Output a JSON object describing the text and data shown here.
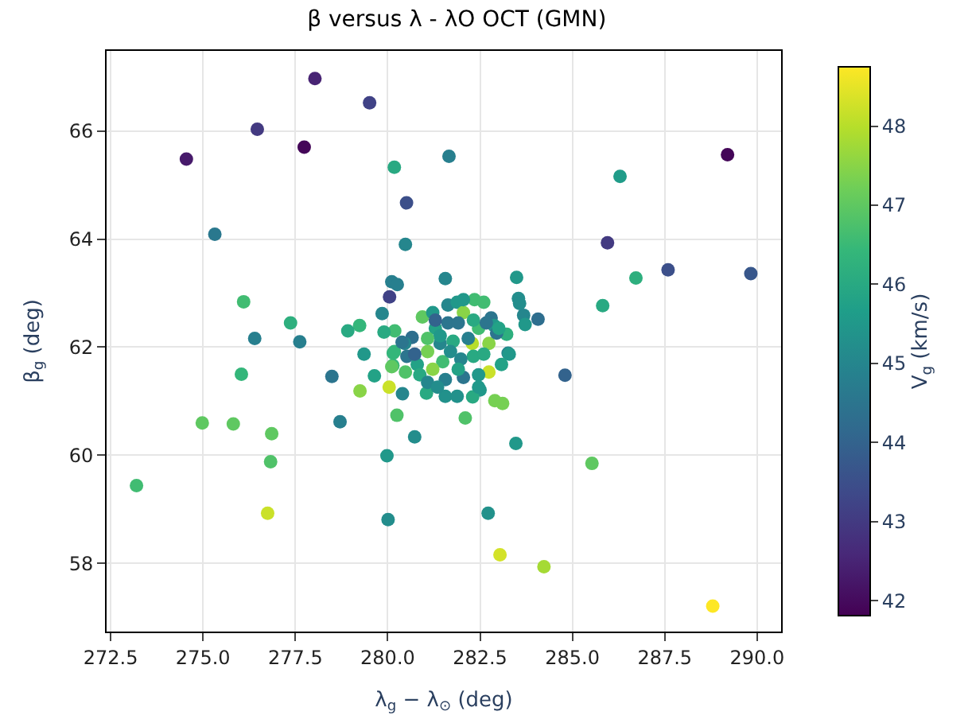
{
  "chart_data": {
    "type": "scatter",
    "title": "β versus λ - λO OCT (GMN)",
    "xlabel": "λ$_{g}$ − λ$_{⊙}$ (deg)",
    "ylabel": "β$_{g}$ (deg)",
    "clabel": "V$_{g}$ (km/s)",
    "x": [
      278.03,
      279.51,
      276.47,
      277.74,
      274.55,
      281.66,
      280.18,
      280.51,
      275.32,
      280.48,
      281.56,
      280.11,
      280.26,
      280.05,
      276.1,
      279.85,
      277.37,
      279.24,
      278.92,
      276.4,
      277.62,
      280.19,
      279.9,
      289.2,
      286.29,
      285.95,
      287.59,
      289.83,
      286.72,
      285.82,
      283.49,
      283.54,
      283.57,
      283.68,
      283.72,
      284.07,
      283.22,
      283.26,
      284.8,
      276.04,
      278.49,
      279.64,
      279.25,
      280.04,
      280.4,
      274.98,
      275.82,
      276.86,
      278.71,
      280.25,
      280.73,
      279.98,
      276.83,
      273.2,
      276.75,
      280.01,
      282.72,
      283.04,
      282.1,
      282.9,
      283.11,
      282.5,
      281.56,
      281.88,
      282.3,
      281.05,
      280.15,
      280.14,
      279.36,
      280.48,
      285.53,
      283.47,
      284.23,
      288.8,
      280.94,
      281.22,
      281.63,
      281.88,
      282.35,
      282.6,
      282.05,
      282.8,
      282.88,
      282.46,
      281.63,
      281.29,
      280.66,
      280.46,
      280.18,
      281.08,
      281.42,
      281.77,
      282.29,
      282.74,
      282.95,
      283.29,
      283.08,
      282.74,
      282.32,
      281.98,
      281.49,
      281.22,
      280.8,
      280.52,
      280.87,
      281.08,
      281.56,
      282.05,
      282.46,
      282.46,
      280.11,
      280.39,
      280.73,
      281.29,
      281.91,
      282.32,
      282.67,
      283.01,
      281.42,
      282.18,
      281.08,
      281.7,
      282.6,
      281.91,
      281.35,
      282.05
    ],
    "values": [
      66.97,
      66.52,
      66.03,
      65.7,
      65.48,
      65.53,
      65.33,
      64.67,
      64.09,
      63.9,
      63.27,
      63.21,
      63.16,
      62.93,
      62.84,
      62.62,
      62.45,
      62.4,
      62.3,
      62.16,
      62.1,
      62.3,
      62.28,
      65.56,
      65.16,
      63.93,
      63.43,
      63.36,
      63.28,
      62.77,
      63.29,
      62.9,
      62.81,
      62.59,
      62.42,
      62.52,
      62.24,
      61.89,
      61.48,
      61.5,
      61.46,
      61.47,
      61.19,
      61.26,
      61.14,
      60.6,
      60.58,
      60.4,
      60.62,
      60.74,
      60.34,
      59.99,
      59.88,
      59.44,
      58.93,
      58.81,
      58.93,
      58.16,
      60.69,
      61.01,
      60.96,
      61.21,
      61.09,
      61.09,
      61.08,
      61.15,
      61.89,
      61.66,
      61.87,
      61.54,
      59.85,
      60.22,
      57.94,
      57.21,
      62.56,
      62.64,
      62.78,
      62.83,
      62.88,
      62.83,
      62.64,
      62.54,
      62.4,
      62.35,
      62.45,
      62.35,
      62.18,
      62.07,
      61.92,
      61.92,
      62.07,
      62.11,
      62.07,
      62.07,
      62.26,
      61.87,
      61.68,
      61.54,
      61.83,
      61.78,
      61.73,
      61.59,
      61.68,
      61.83,
      61.49,
      61.35,
      61.4,
      61.44,
      61.49,
      61.26,
      61.64,
      62.09,
      61.87,
      62.5,
      62.45,
      62.5,
      62.45,
      62.35,
      62.21,
      62.16,
      62.16,
      61.92,
      61.87,
      61.59,
      61.26,
      62.88
    ],
    "cvalues": [
      42.5,
      43.2,
      43.0,
      41.9,
      42.3,
      44.8,
      46.0,
      43.5,
      44.6,
      45.0,
      45.0,
      44.8,
      44.8,
      43.2,
      46.6,
      45.0,
      46.2,
      46.4,
      46.0,
      44.8,
      44.8,
      46.6,
      46.0,
      41.9,
      45.6,
      43.0,
      43.5,
      43.7,
      46.2,
      46.0,
      45.5,
      45.2,
      45.2,
      45.0,
      45.5,
      44.3,
      46.2,
      45.0,
      44.0,
      46.4,
      44.5,
      45.8,
      47.5,
      48.2,
      45.0,
      47.0,
      47.0,
      47.0,
      44.8,
      46.8,
      45.2,
      45.5,
      46.8,
      46.6,
      48.2,
      45.2,
      45.3,
      48.3,
      46.8,
      47.3,
      47.3,
      45.5,
      45.3,
      45.3,
      46.0,
      46.0,
      46.4,
      46.4,
      45.5,
      46.8,
      47.0,
      45.5,
      47.8,
      48.8,
      47.0,
      45.5,
      45.0,
      45.5,
      46.6,
      46.6,
      47.5,
      44.5,
      45.5,
      46.6,
      44.5,
      45.8,
      44.3,
      45.0,
      46.4,
      47.3,
      45.0,
      46.0,
      48.0,
      47.5,
      44.5,
      45.5,
      45.8,
      48.2,
      46.0,
      45.0,
      46.6,
      47.5,
      45.8,
      44.5,
      46.0,
      45.0,
      44.8,
      44.5,
      45.5,
      45.5,
      47.0,
      44.5,
      44.0,
      44.0,
      44.5,
      46.0,
      44.5,
      45.8,
      45.5,
      44.8,
      46.8,
      45.2,
      46.0,
      45.8,
      45.2,
      45.5
    ],
    "xlim": [
      272.39,
      290.65
    ],
    "ylim": [
      56.74,
      67.48
    ],
    "xticks": [
      272.5,
      {
        "value": 275,
        "label": "275.0"
      },
      277.5,
      {
        "value": 280,
        "label": "280.0"
      },
      282.5,
      {
        "value": 285,
        "label": "285.0"
      },
      287.5,
      {
        "value": 290,
        "label": "290.0"
      }
    ],
    "yticks": [
      58,
      60,
      62,
      64,
      66
    ],
    "clim": [
      41.81,
      48.75
    ],
    "cticks": [
      42,
      43,
      44,
      45,
      46,
      47,
      48
    ],
    "grid": true
  }
}
